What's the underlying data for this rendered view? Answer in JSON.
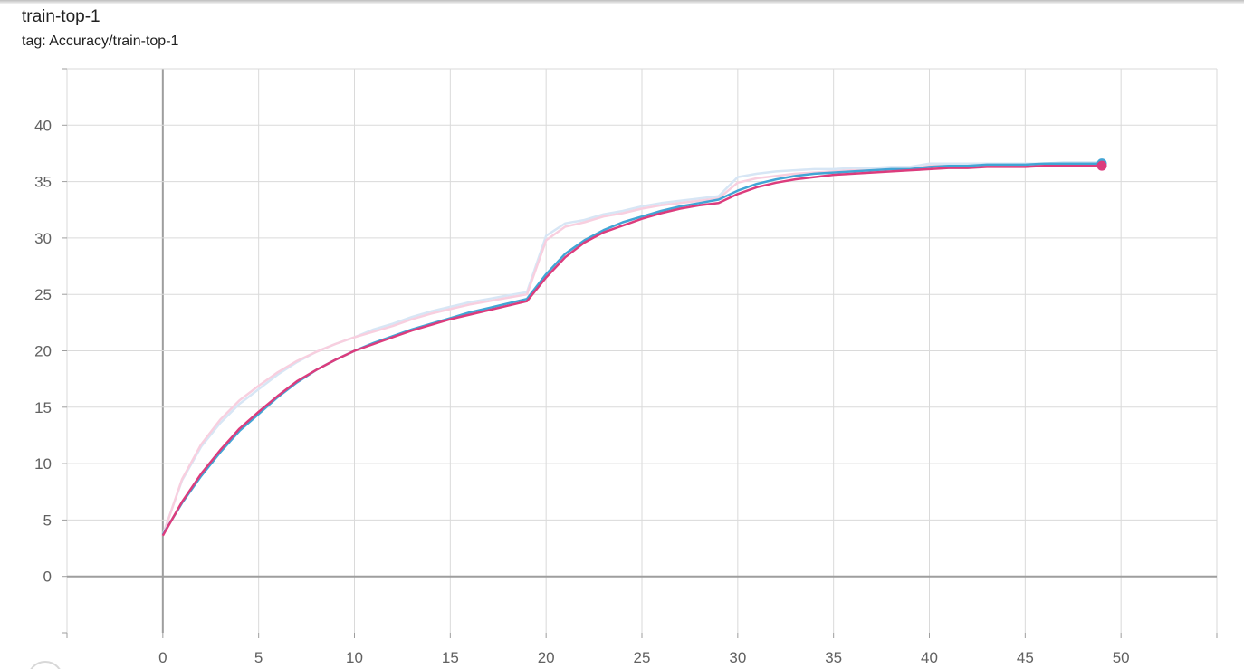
{
  "header": {
    "title": "train-top-1",
    "tag": "tag: Accuracy/train-top-1"
  },
  "chart_data": {
    "type": "line",
    "title": "train-top-1",
    "subtitle": "tag: Accuracy/train-top-1",
    "xlabel": "",
    "ylabel": "",
    "xlim": [
      -5,
      55
    ],
    "ylim": [
      -5,
      45
    ],
    "x_ticks": [
      0,
      5,
      10,
      15,
      20,
      25,
      30,
      35,
      40,
      45,
      50
    ],
    "y_ticks": [
      0,
      5,
      10,
      15,
      20,
      25,
      30,
      35,
      40
    ],
    "grid": true,
    "legend": "none",
    "series": [
      {
        "color": "#42a5d5",
        "raw_color": "#d7e6f5",
        "smoothed": true,
        "x": [
          0,
          1,
          2,
          3,
          4,
          5,
          6,
          7,
          8,
          9,
          10,
          11,
          12,
          13,
          14,
          15,
          16,
          17,
          18,
          19,
          20,
          21,
          22,
          23,
          24,
          25,
          26,
          27,
          28,
          29,
          30,
          31,
          32,
          33,
          34,
          35,
          36,
          37,
          38,
          39,
          40,
          41,
          42,
          43,
          44,
          45,
          46,
          47,
          48,
          49
        ],
        "values": [
          3.7,
          6.5,
          8.9,
          11.0,
          12.9,
          14.4,
          15.9,
          17.2,
          18.3,
          19.2,
          20.0,
          20.7,
          21.3,
          21.9,
          22.4,
          22.9,
          23.4,
          23.8,
          24.2,
          24.6,
          26.8,
          28.6,
          29.8,
          30.7,
          31.4,
          31.9,
          32.4,
          32.8,
          33.1,
          33.4,
          34.2,
          34.8,
          35.2,
          35.5,
          35.7,
          35.8,
          35.9,
          36.0,
          36.1,
          36.1,
          36.3,
          36.4,
          36.4,
          36.5,
          36.5,
          36.5,
          36.6,
          36.6,
          36.6,
          36.6
        ],
        "raw_values": [
          3.7,
          8.5,
          11.5,
          13.6,
          15.3,
          16.6,
          17.9,
          19.0,
          19.9,
          20.6,
          21.2,
          21.9,
          22.4,
          23.0,
          23.5,
          23.9,
          24.3,
          24.6,
          24.9,
          25.2,
          30.2,
          31.3,
          31.6,
          32.1,
          32.4,
          32.8,
          33.1,
          33.3,
          33.5,
          33.7,
          35.4,
          35.7,
          35.9,
          36.0,
          36.1,
          36.1,
          36.2,
          36.2,
          36.3,
          36.3,
          36.6,
          36.6,
          36.6,
          36.6,
          36.6,
          36.6,
          36.6,
          36.7,
          36.7,
          36.7
        ]
      },
      {
        "color": "#dc3c7d",
        "raw_color": "#f8cfdf",
        "smoothed": true,
        "x": [
          0,
          1,
          2,
          3,
          4,
          5,
          6,
          7,
          8,
          9,
          10,
          11,
          12,
          13,
          14,
          15,
          16,
          17,
          18,
          19,
          20,
          21,
          22,
          23,
          24,
          25,
          26,
          27,
          28,
          29,
          30,
          31,
          32,
          33,
          34,
          35,
          36,
          37,
          38,
          39,
          40,
          41,
          42,
          43,
          44,
          45,
          46,
          47,
          48,
          49
        ],
        "values": [
          3.6,
          6.6,
          9.1,
          11.2,
          13.1,
          14.6,
          16.0,
          17.3,
          18.3,
          19.2,
          20.0,
          20.6,
          21.2,
          21.8,
          22.3,
          22.8,
          23.2,
          23.6,
          24.0,
          24.4,
          26.5,
          28.3,
          29.6,
          30.5,
          31.1,
          31.7,
          32.2,
          32.6,
          32.9,
          33.1,
          33.9,
          34.5,
          34.9,
          35.2,
          35.4,
          35.6,
          35.7,
          35.8,
          35.9,
          36.0,
          36.1,
          36.2,
          36.2,
          36.3,
          36.3,
          36.3,
          36.4,
          36.4,
          36.4,
          36.4
        ],
        "raw_values": [
          3.6,
          8.6,
          11.7,
          13.9,
          15.6,
          16.9,
          18.1,
          19.1,
          19.9,
          20.6,
          21.2,
          21.7,
          22.2,
          22.8,
          23.3,
          23.7,
          24.1,
          24.4,
          24.7,
          25.0,
          29.8,
          31.0,
          31.4,
          31.9,
          32.2,
          32.6,
          32.9,
          33.1,
          33.3,
          33.5,
          34.9,
          35.3,
          35.5,
          35.7,
          35.8,
          35.9,
          36.0,
          36.0,
          36.1,
          36.1,
          36.4,
          36.4,
          36.4,
          36.4,
          36.4,
          36.4,
          36.4,
          36.5,
          36.5,
          36.5
        ]
      }
    ]
  }
}
